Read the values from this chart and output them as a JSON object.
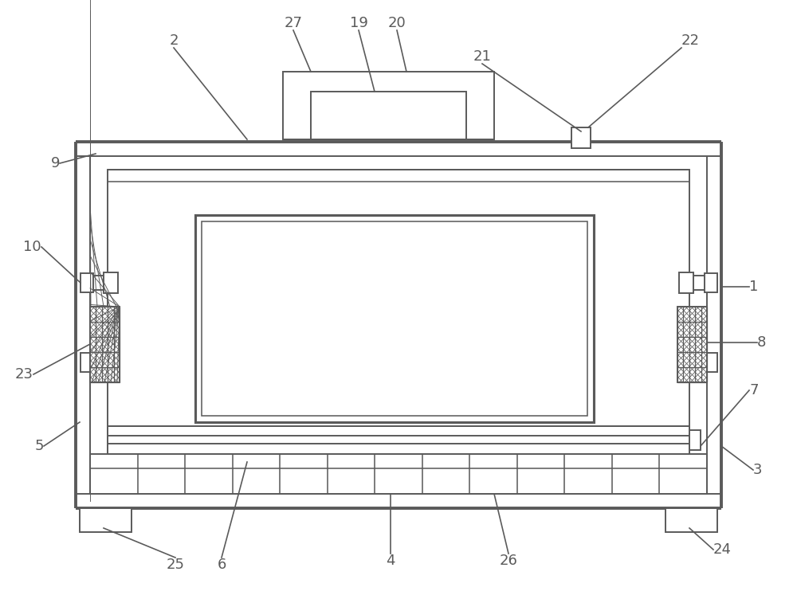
{
  "bg_color": "#ffffff",
  "line_color": "#5a5a5a",
  "lw": 1.4,
  "fig_width": 10.0,
  "fig_height": 7.47
}
